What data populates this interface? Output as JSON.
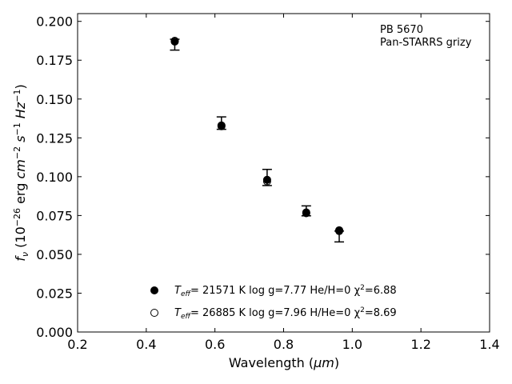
{
  "chart_data": {
    "type": "scatter",
    "xlabel_main": "Wavelength (",
    "xlabel_unit": "μm",
    "xlabel_end": ")",
    "ylabel": {
      "symbol": "f",
      "sub": "ν",
      "text1": " (10",
      "exp1": "−26",
      "text2": " erg ",
      "cm": "cm",
      "exp2": "−2",
      "s": " s",
      "exp3": "−1",
      "hz": " Hz",
      "exp4": "−1",
      "close": ")"
    },
    "xlim": [
      0.2,
      1.4
    ],
    "ylim": [
      0.0,
      0.205
    ],
    "xticks": [
      "0.2",
      "0.4",
      "0.6",
      "0.8",
      "1.0",
      "1.2",
      "1.4"
    ],
    "yticks": [
      "0.000",
      "0.025",
      "0.050",
      "0.075",
      "0.100",
      "0.125",
      "0.150",
      "0.175",
      "0.200"
    ],
    "annotation": [
      "PB 5670",
      "Pan-STARRS grizy"
    ],
    "observed": [
      {
        "x": 0.483,
        "y": 0.185,
        "err": 0.0035
      },
      {
        "x": 0.619,
        "y": 0.1345,
        "err": 0.004
      },
      {
        "x": 0.752,
        "y": 0.0995,
        "err": 0.0052
      },
      {
        "x": 0.866,
        "y": 0.078,
        "err": 0.0032
      },
      {
        "x": 0.962,
        "y": 0.0615,
        "err": 0.0035
      }
    ],
    "series": [
      {
        "name_teff": "T",
        "name_teff_sub": "eff",
        "name_rest": "= 21571 K  log g=7.77  He/H=0  χ",
        "name_sup": "2",
        "name_end": "=6.88",
        "marker": "filled",
        "points": [
          {
            "x": 0.483,
            "y": 0.187
          },
          {
            "x": 0.619,
            "y": 0.1325
          },
          {
            "x": 0.752,
            "y": 0.098
          },
          {
            "x": 0.866,
            "y": 0.077
          },
          {
            "x": 0.962,
            "y": 0.0655
          }
        ]
      },
      {
        "name_teff": "T",
        "name_teff_sub": "eff",
        "name_rest": "= 26885 K  log g=7.96  H/He=0  χ",
        "name_sup": "2",
        "name_end": "=8.69",
        "marker": "open",
        "points": [
          {
            "x": 0.483,
            "y": 0.1875
          },
          {
            "x": 0.619,
            "y": 0.133
          },
          {
            "x": 0.752,
            "y": 0.097
          },
          {
            "x": 0.866,
            "y": 0.0765
          },
          {
            "x": 0.962,
            "y": 0.065
          }
        ]
      }
    ]
  }
}
